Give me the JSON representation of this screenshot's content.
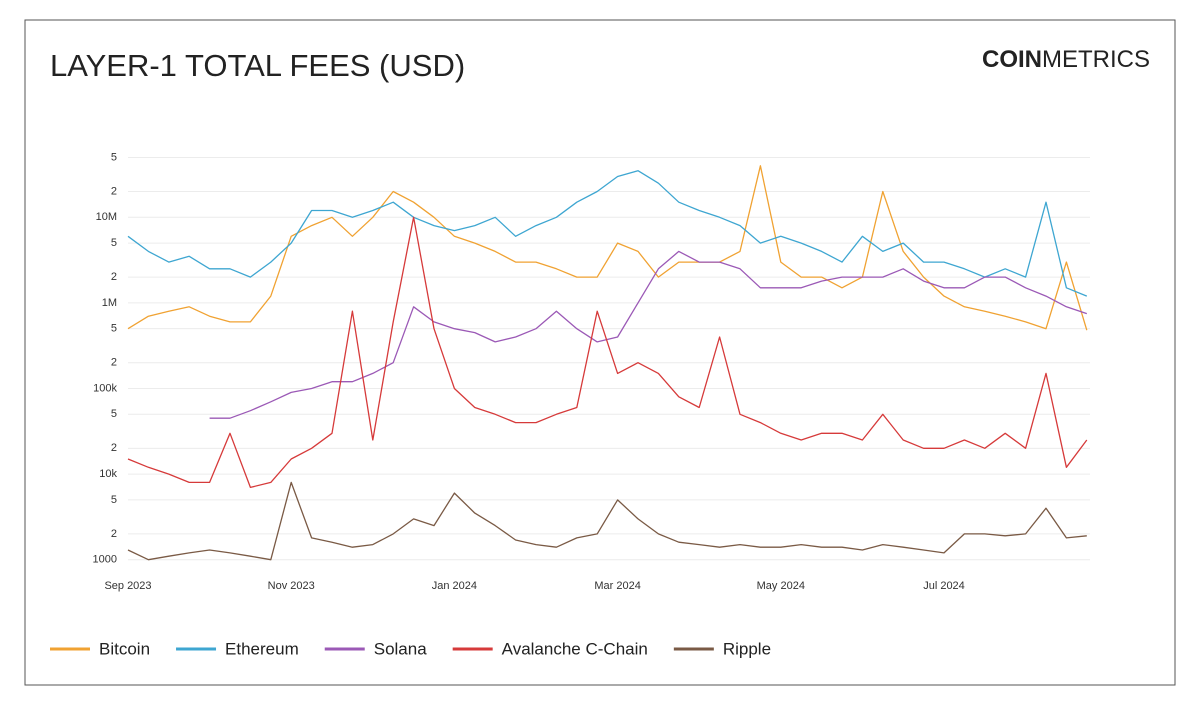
{
  "chart_data": {
    "type": "line",
    "title": "LAYER-1 TOTAL FEES (USD)",
    "logo": [
      "COIN",
      "METRICS"
    ],
    "log_scale": true,
    "grid": true,
    "legend": "bottom",
    "categories": [
      "Sep 2023",
      null,
      null,
      null,
      null,
      null,
      null,
      null,
      "Nov 2023",
      null,
      null,
      null,
      null,
      null,
      null,
      null,
      "Jan 2024",
      null,
      null,
      null,
      null,
      null,
      null,
      null,
      "Mar 2024",
      null,
      null,
      null,
      null,
      null,
      null,
      null,
      "May 2024",
      null,
      null,
      null,
      null,
      null,
      null,
      null,
      "Jul 2024",
      null,
      null,
      null,
      null,
      null,
      null,
      null
    ],
    "ylim": [
      800,
      80000000
    ],
    "yticks": [
      1000,
      {
        "value": 2000,
        "label": "2"
      },
      {
        "value": 5000,
        "label": "5"
      },
      {
        "value": 10000,
        "label": "10k"
      },
      {
        "value": 20000,
        "label": "2"
      },
      {
        "value": 50000,
        "label": "5"
      },
      {
        "value": 100000,
        "label": "100k"
      },
      {
        "value": 200000,
        "label": "2"
      },
      {
        "value": 500000,
        "label": "5"
      },
      {
        "value": 1000000,
        "label": "1M"
      },
      {
        "value": 2000000,
        "label": "2"
      },
      {
        "value": 5000000,
        "label": "5"
      },
      {
        "value": 10000000,
        "label": "10M"
      },
      {
        "value": 20000000,
        "label": "2"
      },
      {
        "value": 50000000,
        "label": "5"
      }
    ],
    "series": [
      {
        "name": "Bitcoin",
        "color": "#f0a232",
        "values": [
          500000,
          700000,
          800000,
          900000,
          700000,
          600000,
          600000,
          1200000,
          6000000,
          8000000,
          10000000,
          6000000,
          10000000,
          20000000,
          15000000,
          10000000,
          6000000,
          5000000,
          4000000,
          3000000,
          3000000,
          2500000,
          2000000,
          2000000,
          5000000,
          4000000,
          2000000,
          3000000,
          3000000,
          3000000,
          4000000,
          40000000,
          3000000,
          2000000,
          2000000,
          1500000,
          2000000,
          20000000,
          4000000,
          2000000,
          1200000,
          900000,
          800000,
          700000,
          600000,
          500000,
          3000000,
          480000
        ]
      },
      {
        "name": "Ethereum",
        "color": "#3ea6d1",
        "values": [
          6000000,
          4000000,
          3000000,
          3500000,
          2500000,
          2500000,
          2000000,
          3000000,
          5000000,
          12000000,
          12000000,
          10000000,
          12000000,
          15000000,
          10000000,
          8000000,
          7000000,
          8000000,
          10000000,
          6000000,
          8000000,
          10000000,
          15000000,
          20000000,
          30000000,
          35000000,
          25000000,
          15000000,
          12000000,
          10000000,
          8000000,
          5000000,
          6000000,
          5000000,
          4000000,
          3000000,
          6000000,
          4000000,
          5000000,
          3000000,
          3000000,
          2500000,
          2000000,
          2500000,
          2000000,
          15000000,
          1500000,
          1200000
        ]
      },
      {
        "name": "Solana",
        "color": "#9b59b6",
        "values": [
          null,
          null,
          null,
          null,
          45000,
          45000,
          55000,
          70000,
          90000,
          100000,
          120000,
          120000,
          150000,
          200000,
          900000,
          600000,
          500000,
          450000,
          350000,
          400000,
          500000,
          800000,
          500000,
          350000,
          400000,
          1000000,
          2500000,
          4000000,
          3000000,
          3000000,
          2500000,
          1500000,
          1500000,
          1500000,
          1800000,
          2000000,
          2000000,
          2000000,
          2500000,
          1800000,
          1500000,
          1500000,
          2000000,
          2000000,
          1500000,
          1200000,
          900000,
          750000
        ]
      },
      {
        "name": "Avalanche C-Chain",
        "color": "#d63a3a",
        "values": [
          15000,
          12000,
          10000,
          8000,
          8000,
          30000,
          7000,
          8000,
          15000,
          20000,
          30000,
          800000,
          25000,
          600000,
          10000000,
          500000,
          100000,
          60000,
          50000,
          40000,
          40000,
          50000,
          60000,
          800000,
          150000,
          200000,
          150000,
          80000,
          60000,
          400000,
          50000,
          40000,
          30000,
          25000,
          30000,
          30000,
          25000,
          50000,
          25000,
          20000,
          20000,
          25000,
          20000,
          30000,
          20000,
          150000,
          12000,
          25000
        ]
      },
      {
        "name": "Ripple",
        "color": "#7a5a45",
        "values": [
          1300,
          1000,
          1100,
          1200,
          1300,
          1200,
          1100,
          1000,
          8000,
          1800,
          1600,
          1400,
          1500,
          2000,
          3000,
          2500,
          6000,
          3500,
          2500,
          1700,
          1500,
          1400,
          1800,
          2000,
          5000,
          3000,
          2000,
          1600,
          1500,
          1400,
          1500,
          1400,
          1400,
          1500,
          1400,
          1400,
          1300,
          1500,
          1400,
          1300,
          1200,
          2000,
          2000,
          1900,
          2000,
          4000,
          1800,
          1900
        ]
      }
    ]
  }
}
